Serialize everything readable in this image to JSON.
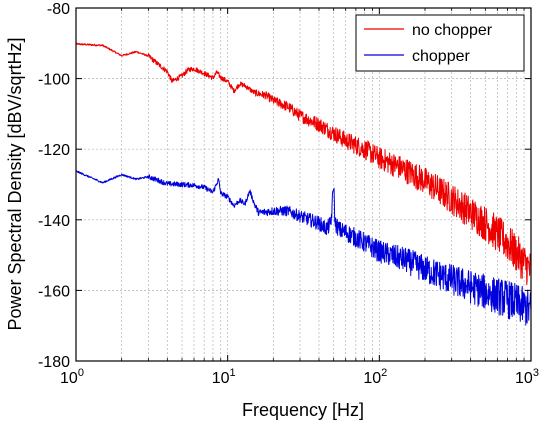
{
  "chart_data": {
    "type": "line",
    "xscale": "log",
    "xlim": [
      1,
      1000
    ],
    "ylim": [
      -180,
      -80
    ],
    "grid": true,
    "legend_position": "top-right",
    "xlabel": "Frequency [Hz]",
    "ylabel": "Power Spectral Density [dBV/sqrtHz]",
    "x_ticks": [
      {
        "value": 1,
        "base": "10",
        "exp": "0"
      },
      {
        "value": 10,
        "base": "10",
        "exp": "1"
      },
      {
        "value": 100,
        "base": "10",
        "exp": "2"
      },
      {
        "value": 1000,
        "base": "10",
        "exp": "3"
      }
    ],
    "y_ticks": [
      {
        "value": -80,
        "label": "-80"
      },
      {
        "value": -100,
        "label": "-100"
      },
      {
        "value": -120,
        "label": "-120"
      },
      {
        "value": -140,
        "label": "-140"
      },
      {
        "value": -160,
        "label": "-160"
      },
      {
        "value": -180,
        "label": "-180"
      }
    ],
    "series": [
      {
        "name": "no chopper",
        "color": "#ee0000",
        "points": [
          [
            1,
            -90.2
          ],
          [
            1.5,
            -90.6
          ],
          [
            2,
            -93.5
          ],
          [
            2.5,
            -92.4
          ],
          [
            3,
            -93.6
          ],
          [
            3.5,
            -96
          ],
          [
            4,
            -98
          ],
          [
            4.3,
            -100.8
          ],
          [
            5,
            -99.2
          ],
          [
            5.5,
            -97.5
          ],
          [
            6,
            -97.2
          ],
          [
            7,
            -98.5
          ],
          [
            8,
            -99.8
          ],
          [
            8.5,
            -98.2
          ],
          [
            9,
            -99.7
          ],
          [
            10,
            -100.8
          ],
          [
            11,
            -103.5
          ],
          [
            12,
            -101.5
          ],
          [
            13,
            -102
          ],
          [
            15,
            -104
          ],
          [
            18,
            -104.8
          ],
          [
            20,
            -106.2
          ],
          [
            25,
            -108
          ],
          [
            30,
            -110.5
          ],
          [
            40,
            -113
          ],
          [
            50,
            -115.5
          ],
          [
            60,
            -117.5
          ],
          [
            80,
            -120
          ],
          [
            100,
            -122.5
          ],
          [
            150,
            -126
          ],
          [
            200,
            -129
          ],
          [
            300,
            -134
          ],
          [
            400,
            -138
          ],
          [
            500,
            -141
          ],
          [
            700,
            -146.5
          ],
          [
            1000,
            -154.5
          ]
        ]
      },
      {
        "name": "chopper",
        "color": "#0000dd",
        "points": [
          [
            1,
            -126.2
          ],
          [
            1.5,
            -129.5
          ],
          [
            2,
            -127.2
          ],
          [
            2.5,
            -128.5
          ],
          [
            3,
            -127.8
          ],
          [
            4,
            -129.8
          ],
          [
            5,
            -130
          ],
          [
            6,
            -130.2
          ],
          [
            7,
            -130.8
          ],
          [
            8,
            -132.2
          ],
          [
            8.7,
            -128.5
          ],
          [
            9,
            -132.5
          ],
          [
            10,
            -133.5
          ],
          [
            11,
            -136
          ],
          [
            12,
            -134.5
          ],
          [
            13,
            -135.5
          ],
          [
            14,
            -131.8
          ],
          [
            15,
            -135.5
          ],
          [
            16,
            -138
          ],
          [
            20,
            -137.5
          ],
          [
            25,
            -137.5
          ],
          [
            30,
            -139
          ],
          [
            40,
            -141
          ],
          [
            45,
            -142.5
          ],
          [
            48,
            -141
          ],
          [
            50,
            -129.5
          ],
          [
            51,
            -141
          ],
          [
            55,
            -143
          ],
          [
            60,
            -143.5
          ],
          [
            80,
            -146.5
          ],
          [
            100,
            -149
          ],
          [
            150,
            -151.5
          ],
          [
            200,
            -154
          ],
          [
            300,
            -157
          ],
          [
            400,
            -159
          ],
          [
            500,
            -160.5
          ],
          [
            700,
            -162.5
          ],
          [
            1000,
            -165.5
          ]
        ]
      }
    ]
  }
}
